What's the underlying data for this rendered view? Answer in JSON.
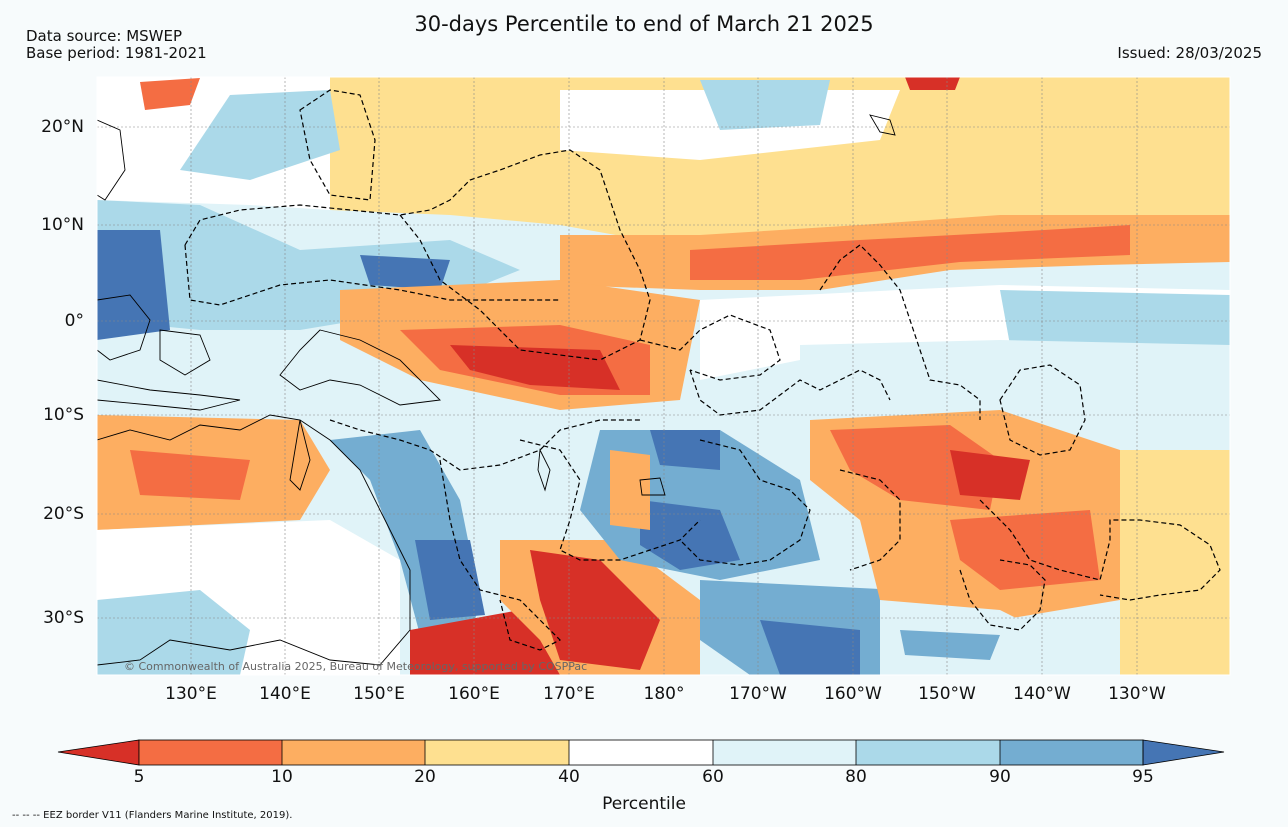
{
  "title": "30-days Percentile to end of March 21 2025",
  "data_source": "Data source: MSWEP",
  "base_period": "Base period: 1981-2021",
  "issued": "Issued: 28/03/2025",
  "credit": "© Commonwealth of Australia 2025, Bureau of Meteorology, supported by COSPPac",
  "footnote": "--  --  -- EEZ border V11 (Flanders Marine Institute, 2019).",
  "latitude_labels": [
    "20°N",
    "10°N",
    "0°",
    "10°S",
    "20°S",
    "30°S"
  ],
  "longitude_labels": [
    "130°E",
    "140°E",
    "150°E",
    "160°E",
    "170°E",
    "180°",
    "170°W",
    "160°W",
    "150°W",
    "140°W",
    "130°W"
  ],
  "colorbar": {
    "title": "Percentile",
    "tick_labels": [
      "5",
      "10",
      "20",
      "40",
      "60",
      "80",
      "90",
      "95"
    ],
    "colors": [
      "#d73027",
      "#f46d43",
      "#fdae61",
      "#fee090",
      "#ffffff",
      "#e0f3f8",
      "#abd9e9",
      "#74add1",
      "#4575b4"
    ]
  },
  "palette": {
    "background": "#f7fbfc",
    "ocean_neutral": "#ffffff",
    "land_outline": "#000000",
    "eez_border": "#000000"
  }
}
